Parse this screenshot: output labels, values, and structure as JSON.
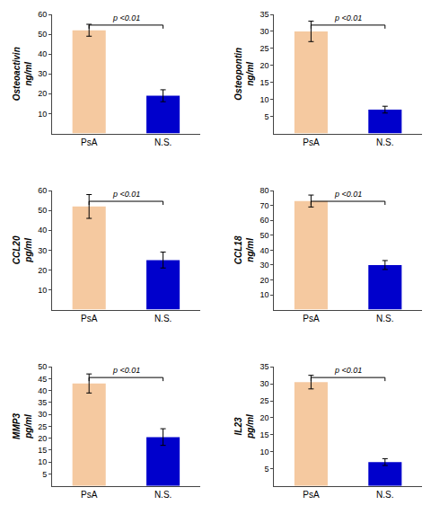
{
  "chart_data": [
    {
      "type": "bar",
      "ylabel": "Osteoactivin\nng/ml",
      "categories": [
        "PsA",
        "N.S."
      ],
      "values": [
        52,
        19
      ],
      "errors": [
        3,
        3
      ],
      "colors": [
        "#F5C9A0",
        "#0000CC"
      ],
      "ylim": [
        0,
        60
      ],
      "yticks": [
        10,
        20,
        30,
        40,
        50,
        60
      ],
      "annotation": "p <0.01",
      "grid": false
    },
    {
      "type": "bar",
      "ylabel": "Osteopontin\nng/ml",
      "categories": [
        "PsA",
        "N.S."
      ],
      "values": [
        30,
        7
      ],
      "errors": [
        3,
        1
      ],
      "colors": [
        "#F5C9A0",
        "#0000CC"
      ],
      "ylim": [
        0,
        35
      ],
      "yticks": [
        5,
        10,
        15,
        20,
        25,
        30,
        35
      ],
      "annotation": "p <0.01",
      "grid": false
    },
    {
      "type": "bar",
      "ylabel": "CCL20\npg/ml",
      "categories": [
        "PsA",
        "N.S."
      ],
      "values": [
        52,
        25
      ],
      "errors": [
        6,
        4
      ],
      "colors": [
        "#F5C9A0",
        "#0000CC"
      ],
      "ylim": [
        0,
        60
      ],
      "yticks": [
        10,
        20,
        30,
        40,
        50,
        60
      ],
      "annotation": "p <0.01",
      "grid": false
    },
    {
      "type": "bar",
      "ylabel": "CCL18\nng/ml",
      "categories": [
        "PsA",
        "N.S."
      ],
      "values": [
        73,
        30
      ],
      "errors": [
        4,
        3
      ],
      "colors": [
        "#F5C9A0",
        "#0000CC"
      ],
      "ylim": [
        0,
        80
      ],
      "yticks": [
        10,
        20,
        30,
        40,
        50,
        60,
        70,
        80
      ],
      "annotation": "p <0.01",
      "grid": false
    },
    {
      "type": "bar",
      "ylabel": "MMP3\npg/ml",
      "categories": [
        "PsA",
        "N.S."
      ],
      "values": [
        43,
        20.5
      ],
      "errors": [
        4,
        3.5
      ],
      "colors": [
        "#F5C9A0",
        "#0000CC"
      ],
      "ylim": [
        0,
        50
      ],
      "yticks": [
        5,
        10,
        15,
        20,
        25,
        30,
        35,
        40,
        45,
        50
      ],
      "annotation": "p <0.01",
      "grid": false
    },
    {
      "type": "bar",
      "ylabel": "IL23\npg/ml",
      "categories": [
        "PsA",
        "N.S."
      ],
      "values": [
        30.5,
        7
      ],
      "errors": [
        2,
        1
      ],
      "colors": [
        "#F5C9A0",
        "#0000CC"
      ],
      "ylim": [
        0,
        35
      ],
      "yticks": [
        5,
        10,
        15,
        20,
        25,
        30,
        35
      ],
      "annotation": "p <0.01",
      "grid": false
    }
  ]
}
